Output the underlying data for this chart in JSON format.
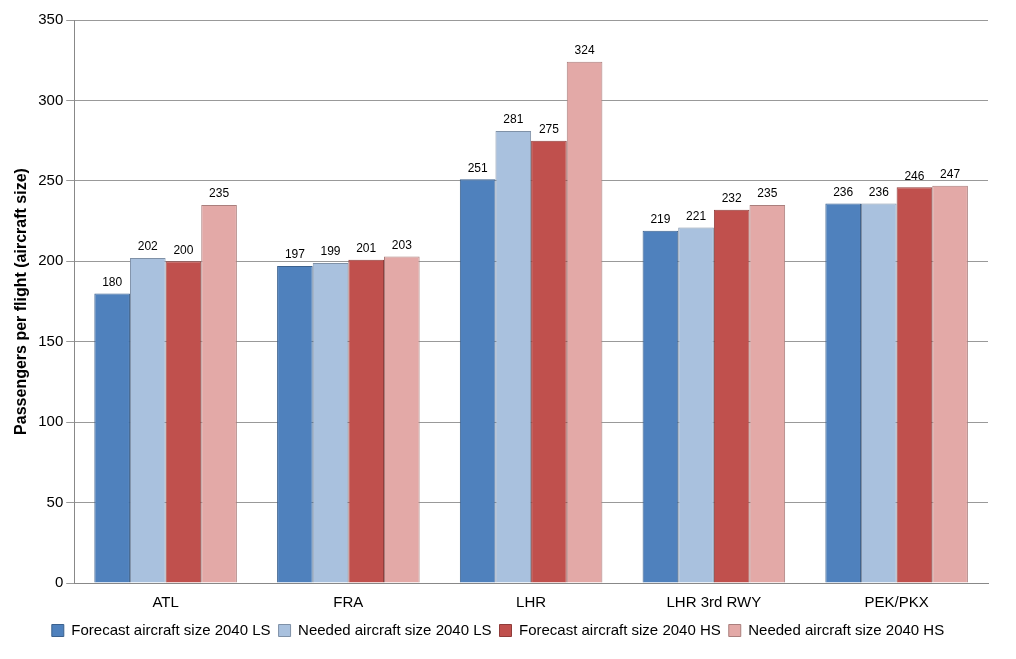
{
  "chart_data": {
    "type": "bar",
    "ylabel": "Passengers per flight (aircraft size)",
    "categories": [
      "ATL",
      "FRA",
      "LHR",
      "LHR 3rd RWY",
      "PEK/PKX"
    ],
    "series": [
      {
        "name": "Forecast aircraft size 2040 LS",
        "color": "#4f81bd",
        "values": [
          180,
          197,
          251,
          219,
          236
        ]
      },
      {
        "name": "Needed aircraft size 2040 LS",
        "color": "#a9c1de",
        "values": [
          202,
          199,
          281,
          221,
          236
        ]
      },
      {
        "name": "Forecast aircraft size 2040 HS",
        "color": "#c0504d",
        "values": [
          200,
          201,
          275,
          232,
          246
        ]
      },
      {
        "name": "Needed aircraft size 2040 HS",
        "color": "#e3a9a7",
        "values": [
          235,
          203,
          324,
          235,
          247
        ]
      }
    ],
    "ylim": [
      0,
      350
    ],
    "yticks": [
      0,
      50,
      100,
      150,
      200,
      250,
      300,
      350
    ],
    "grid": "y",
    "legend": "bottom",
    "data_labels": true
  }
}
